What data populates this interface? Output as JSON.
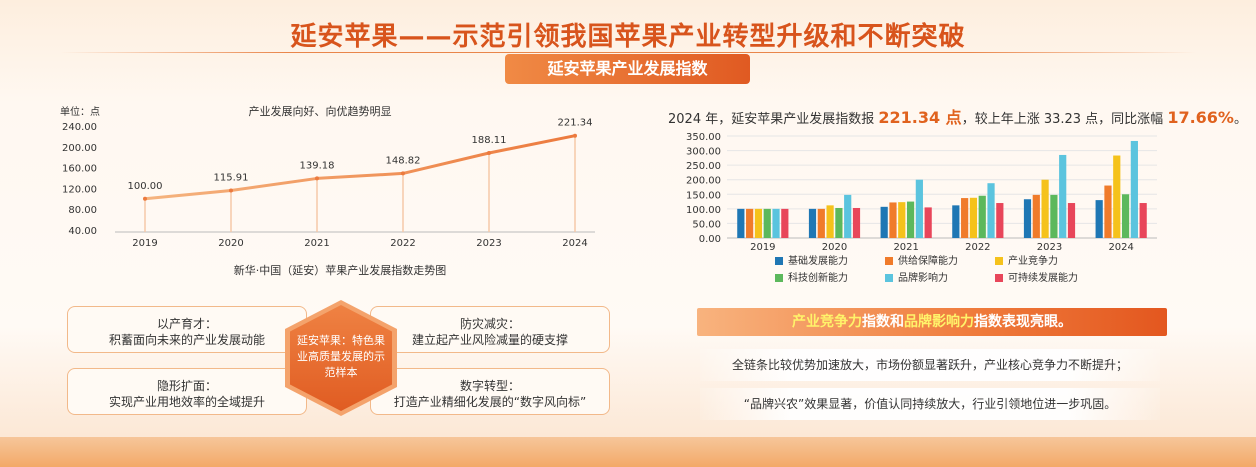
{
  "header": {
    "title": "延安苹果——示范引领我国苹果产业转型升级和不断突破",
    "badge": "延安苹果产业发展指数"
  },
  "left": {
    "unit_label": "单位：点",
    "subtitle": "产业发展向好、向优趋势明显",
    "caption": "新华·中国（延安）苹果产业发展指数走势图"
  },
  "summary": {
    "pre": "2024 年，延安苹果产业发展指数报 ",
    "value": "221.34 点",
    "mid": "，较上年上涨 33.23 点，同比涨幅 ",
    "pct": "17.66%",
    "post": "。"
  },
  "highlight": {
    "part1": "产业竞争力",
    "part2": "指数和",
    "part3": "品牌影响力",
    "part4": "指数表现亮眼。"
  },
  "notes": [
    "全链条比较优势加速放大，市场份额显著跃升，产业核心竞争力不断提升；",
    "“品牌兴农”效果显著，价值认同持续放大，行业引领地位进一步巩固。"
  ],
  "cards": {
    "tl_title": "以产育才：",
    "tl_body": "积蓄面向未来的产业发展动能",
    "bl_title": "隐形扩面：",
    "bl_body": "实现产业用地效率的全域提升",
    "tr_title": "防灾减灾：",
    "tr_body": "建立起产业风险减量的硬支撑",
    "br_title": "数字转型：",
    "br_body": "打造产业精细化发展的“数字风向标”",
    "center": "延安苹果：特色果业高质量发展的示范样本"
  },
  "chart_data": [
    {
      "type": "line",
      "title": "产业发展向好、向优趋势明显",
      "xlabel": "",
      "ylabel": "单位：点",
      "x": [
        "2019",
        "2020",
        "2021",
        "2022",
        "2023",
        "2024"
      ],
      "values": [
        100.0,
        115.91,
        139.18,
        148.82,
        188.11,
        221.34
      ],
      "value_labels": [
        "100.00",
        "115.91",
        "139.18",
        "148.82",
        "188.11",
        "221.34"
      ],
      "ylim": [
        40,
        240
      ],
      "yticks": [
        "40.00",
        "80.00",
        "120.00",
        "160.00",
        "200.00",
        "240.00"
      ],
      "color": "#ec7a3e",
      "grid": false
    },
    {
      "type": "bar",
      "categories": [
        "2019",
        "2020",
        "2021",
        "2022",
        "2023",
        "2024"
      ],
      "ylim": [
        0,
        350
      ],
      "yticks": [
        "0.00",
        "50.00",
        "100.00",
        "150.00",
        "200.00",
        "250.00",
        "300.00",
        "350.00"
      ],
      "legend_position": "bottom",
      "series": [
        {
          "name": "基础发展能力",
          "color": "#1f77b4",
          "values": [
            100,
            100,
            107,
            112,
            133,
            130
          ]
        },
        {
          "name": "供给保障能力",
          "color": "#f07b2a",
          "values": [
            100,
            100,
            122,
            137,
            148,
            180
          ]
        },
        {
          "name": "产业竞争力",
          "color": "#f5c21b",
          "values": [
            100,
            112,
            123,
            138,
            200,
            283
          ]
        },
        {
          "name": "科技创新能力",
          "color": "#5cb85c",
          "values": [
            100,
            103,
            125,
            145,
            148,
            150
          ]
        },
        {
          "name": "品牌影响力",
          "color": "#5bc4de",
          "values": [
            100,
            148,
            200,
            188,
            285,
            333
          ]
        },
        {
          "name": "可持续发展能力",
          "color": "#e8465a",
          "values": [
            100,
            103,
            105,
            120,
            120,
            120
          ]
        }
      ]
    }
  ]
}
